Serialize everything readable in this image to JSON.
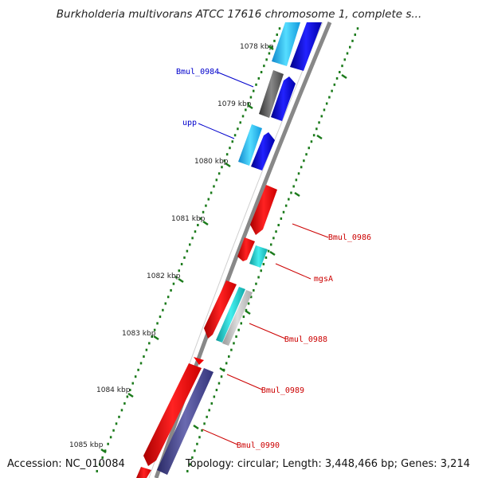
{
  "title": "Burkholderia multivorans ATCC 17616 chromosome 1, complete s...",
  "footer": {
    "accession": "Accession: NC_010084",
    "topology": "Topology: circular; Length: 3,448,466 bp; Genes: 3,214"
  },
  "ticks": [
    "1078 kbp",
    "1079 kbp",
    "1080 kbp",
    "1081 kbp",
    "1082 kbp",
    "1083 kbp",
    "1084 kbp",
    "1085 kbp"
  ],
  "gene_labels": [
    {
      "text": "Bmul_0984",
      "color": "#0000cc"
    },
    {
      "text": "upp",
      "color": "#0000cc"
    },
    {
      "text": "Bmul_0986",
      "color": "#cc0000"
    },
    {
      "text": "mgsA",
      "color": "#cc0000"
    },
    {
      "text": "Bmul_0988",
      "color": "#cc0000"
    },
    {
      "text": "Bmul_0989",
      "color": "#cc0000"
    },
    {
      "text": "Bmul_0990",
      "color": "#cc0000"
    }
  ],
  "colors": {
    "forward_cds": "#0000ee",
    "forward_gene": "#22bbee",
    "reverse_cds": "#ee0000",
    "reverse_gene": "#22cccc",
    "unknown": "#666666",
    "other": "#5050a0",
    "ruler": "#1a7a1a",
    "backbone": "#888888"
  }
}
